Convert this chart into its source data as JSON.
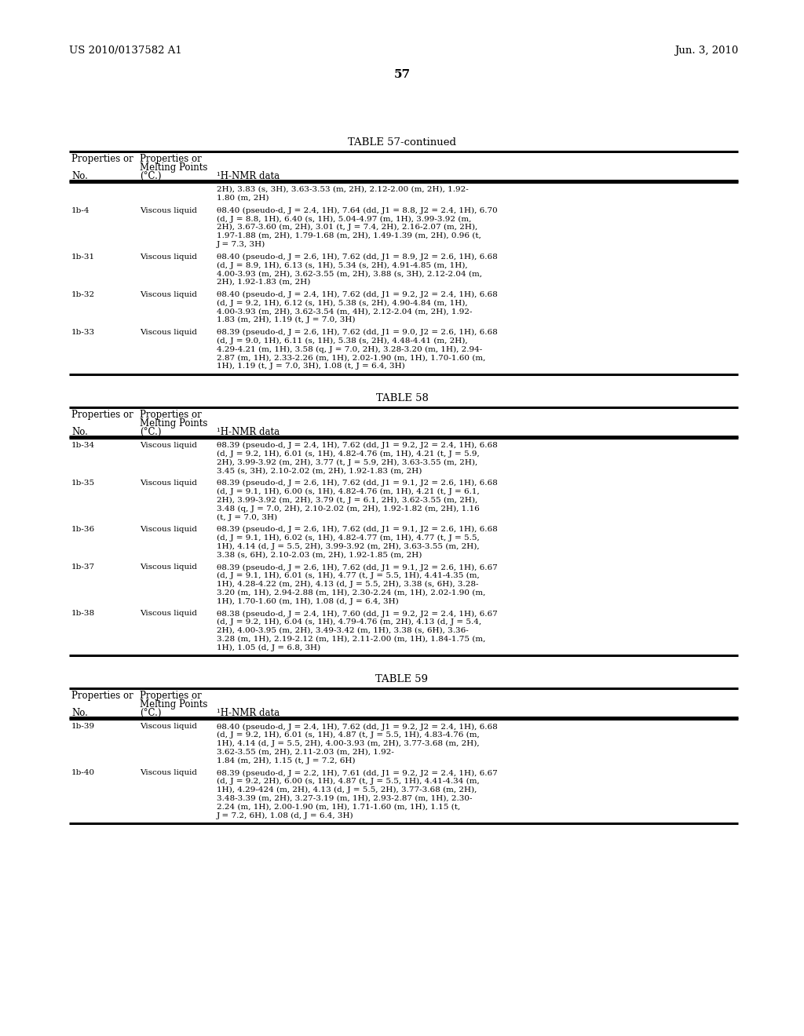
{
  "background_color": "#ffffff",
  "page_header_left": "US 2010/0137582 A1",
  "page_header_right": "Jun. 3, 2010",
  "page_number": "57",
  "tables": [
    {
      "title": "TABLE 57-continued",
      "rows": [
        {
          "no": "",
          "prop": "",
          "nmr": "2H), 3.83 (s, 3H), 3.63-3.53 (m, 2H), 2.12-2.00 (m, 2H), 1.92-\n1.80 (m, 2H)"
        },
        {
          "no": "1b-4",
          "prop": "Viscous liquid",
          "nmr": "θ8.40 (pseudo-d, J = 2.4, 1H), 7.64 (dd, J1 = 8.8, J2 = 2.4, 1H), 6.70\n(d, J = 8.8, 1H), 6.40 (s, 1H), 5.04-4.97 (m, 1H), 3.99-3.92 (m,\n2H), 3.67-3.60 (m, 2H), 3.01 (t, J = 7.4, 2H), 2.16-2.07 (m, 2H),\n1.97-1.88 (m, 2H), 1.79-1.68 (m, 2H), 1.49-1.39 (m, 2H), 0.96 (t,\nJ = 7.3, 3H)"
        },
        {
          "no": "1b-31",
          "prop": "Viscous liquid",
          "nmr": "θ8.40 (pseudo-d, J = 2.6, 1H), 7.62 (dd, J1 = 8.9, J2 = 2.6, 1H), 6.68\n(d, J = 8.9, 1H), 6.13 (s, 1H), 5.34 (s, 2H), 4.91-4.85 (m, 1H),\n4.00-3.93 (m, 2H), 3.62-3.55 (m, 2H), 3.88 (s, 3H), 2.12-2.04 (m,\n2H), 1.92-1.83 (m, 2H)"
        },
        {
          "no": "1b-32",
          "prop": "Viscous liquid",
          "nmr": "θ8.40 (pseudo-d, J = 2.4, 1H), 7.62 (dd, J1 = 9.2, J2 = 2.4, 1H), 6.68\n(d, J = 9.2, 1H), 6.12 (s, 1H), 5.38 (s, 2H), 4.90-4.84 (m, 1H),\n4.00-3.93 (m, 2H), 3.62-3.54 (m, 4H), 2.12-2.04 (m, 2H), 1.92-\n1.83 (m, 2H), 1.19 (t, J = 7.0, 3H)"
        },
        {
          "no": "1b-33",
          "prop": "Viscous liquid",
          "nmr": "θ8.39 (pseudo-d, J = 2.6, 1H), 7.62 (dd, J1 = 9.0, J2 = 2.6, 1H), 6.68\n(d, J = 9.0, 1H), 6.11 (s, 1H), 5.38 (s, 2H), 4.48-4.41 (m, 2H),\n4.29-4.21 (m, 1H), 3.58 (q, J = 7.0, 2H), 3.28-3.20 (m, 1H), 2.94-\n2.87 (m, 1H), 2.33-2.26 (m, 1H), 2.02-1.90 (m, 1H), 1.70-1.60 (m,\n1H), 1.19 (t, J = 7.0, 3H), 1.08 (t, J = 6.4, 3H)"
        }
      ]
    },
    {
      "title": "TABLE 58",
      "rows": [
        {
          "no": "1b-34",
          "prop": "Viscous liquid",
          "nmr": "θ8.39 (pseudo-d, J = 2.4, 1H), 7.62 (dd, J1 = 9.2, J2 = 2.4, 1H), 6.68\n(d, J = 9.2, 1H), 6.01 (s, 1H), 4.82-4.76 (m, 1H), 4.21 (t, J = 5.9,\n2H), 3.99-3.92 (m, 2H), 3.77 (t, J = 5.9, 2H), 3.63-3.55 (m, 2H),\n3.45 (s, 3H), 2.10-2.02 (m, 2H), 1.92-1.83 (m, 2H)"
        },
        {
          "no": "1b-35",
          "prop": "Viscous liquid",
          "nmr": "θ8.39 (pseudo-d, J = 2.6, 1H), 7.62 (dd, J1 = 9.1, J2 = 2.6, 1H), 6.68\n(d, J = 9.1, 1H), 6.00 (s, 1H), 4.82-4.76 (m, 1H), 4.21 (t, J = 6.1,\n2H), 3.99-3.92 (m, 2H), 3.79 (t, J = 6.1, 2H), 3.62-3.55 (m, 2H),\n3.48 (q, J = 7.0, 2H), 2.10-2.02 (m, 2H), 1.92-1.82 (m, 2H), 1.16\n(t, J = 7.0, 3H)"
        },
        {
          "no": "1b-36",
          "prop": "Viscous liquid",
          "nmr": "θ8.39 (pseudo-d, J = 2.6, 1H), 7.62 (dd, J1 = 9.1, J2 = 2.6, 1H), 6.68\n(d, J = 9.1, 1H), 6.02 (s, 1H), 4.82-4.77 (m, 1H), 4.77 (t, J = 5.5,\n1H), 4.14 (d, J = 5.5, 2H), 3.99-3.92 (m, 2H), 3.63-3.55 (m, 2H),\n3.38 (s, 6H), 2.10-2.03 (m, 2H), 1.92-1.85 (m, 2H)"
        },
        {
          "no": "1b-37",
          "prop": "Viscous liquid",
          "nmr": "θ8.39 (pseudo-d, J = 2.6, 1H), 7.62 (dd, J1 = 9.1, J2 = 2.6, 1H), 6.67\n(d, J = 9.1, 1H), 6.01 (s, 1H), 4.77 (t, J = 5.5, 1H), 4.41-4.35 (m,\n1H), 4.28-4.22 (m, 2H), 4.13 (d, J = 5.5, 2H), 3.38 (s, 6H), 3.28-\n3.20 (m, 1H), 2.94-2.88 (m, 1H), 2.30-2.24 (m, 1H), 2.02-1.90 (m,\n1H), 1.70-1.60 (m, 1H), 1.08 (d, J = 6.4, 3H)"
        },
        {
          "no": "1b-38",
          "prop": "Viscous liquid",
          "nmr": "θ8.38 (pseudo-d, J = 2.4, 1H), 7.60 (dd, J1 = 9.2, J2 = 2.4, 1H), 6.67\n(d, J = 9.2, 1H), 6.04 (s, 1H), 4.79-4.76 (m, 2H), 4.13 (d, J = 5.4,\n2H), 4.00-3.95 (m, 2H), 3.49-3.42 (m, 1H), 3.38 (s, 6H), 3.36-\n3.28 (m, 1H), 2.19-2.12 (m, 1H), 2.11-2.00 (m, 1H), 1.84-1.75 (m,\n1H), 1.05 (d, J = 6.8, 3H)"
        }
      ]
    },
    {
      "title": "TABLE 59",
      "rows": [
        {
          "no": "1b-39",
          "prop": "Viscous liquid",
          "nmr": "θ8.40 (pseudo-d, J = 2.4, 1H), 7.62 (dd, J1 = 9.2, J2 = 2.4, 1H), 6.68\n(d, J = 9.2, 1H), 6.01 (s, 1H), 4.87 (t, J = 5.5, 1H), 4.83-4.76 (m,\n1H), 4.14 (d, J = 5.5, 2H), 4.00-3.93 (m, 2H), 3.77-3.68 (m, 2H),\n3.62-3.55 (m, 2H), 2.11-2.03 (m, 2H), 1.92-\n1.84 (m, 2H), 1.15 (t, J = 7.2, 6H)"
        },
        {
          "no": "1b-40",
          "prop": "Viscous liquid",
          "nmr": "θ8.39 (pseudo-d, J = 2.2, 1H), 7.61 (dd, J1 = 9.2, J2 = 2.4, 1H), 6.67\n(d, J = 9.2, 2H), 6.00 (s, 1H), 4.87 (t, J = 5.5, 1H), 4.41-4.34 (m,\n1H), 4.29-424 (m, 2H), 4.13 (d, J = 5.5, 2H), 3.77-3.68 (m, 2H),\n3.48-3.39 (m, 2H), 3.27-3.19 (m, 1H), 2.93-2.87 (m, 1H), 2.30-\n2.24 (m, 1H), 2.00-1.90 (m, 1H), 1.71-1.60 (m, 1H), 1.15 (t,\nJ = 7.2, 6H), 1.08 (d, J = 6.4, 3H)"
        }
      ]
    }
  ]
}
